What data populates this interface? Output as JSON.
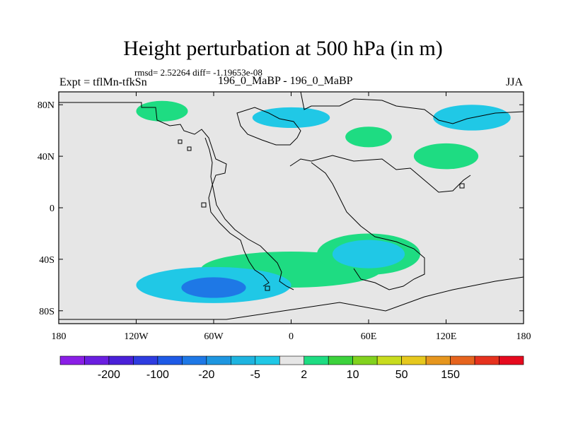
{
  "chart_data": {
    "type": "heatmap",
    "title": "Height perturbation at 500 hPa (in m)",
    "stats_line": "rmsd= 2.52264 diff= -1.19653e-08",
    "left_label": "Expt = tflMn-tfkSn",
    "center_label": "196_0_MaBP - 196_0_MaBP",
    "right_label": "JJA",
    "xlim": [
      -180,
      180
    ],
    "ylim": [
      -90,
      90
    ],
    "x_ticks": [
      {
        "value": -180,
        "label": "180"
      },
      {
        "value": -120,
        "label": "120W"
      },
      {
        "value": -60,
        "label": "60W"
      },
      {
        "value": 0,
        "label": "0"
      },
      {
        "value": 60,
        "label": "60E"
      },
      {
        "value": 120,
        "label": "120E"
      },
      {
        "value": 180,
        "label": "180"
      }
    ],
    "y_ticks": [
      {
        "value": 80,
        "label": "80N"
      },
      {
        "value": 40,
        "label": "40N"
      },
      {
        "value": 0,
        "label": "0"
      },
      {
        "value": -40,
        "label": "40S"
      },
      {
        "value": -80,
        "label": "80S"
      }
    ],
    "colorbar": {
      "colors": [
        "#8a1ee6",
        "#6a1ee0",
        "#4a20d8",
        "#2e3ce0",
        "#1e5ae6",
        "#1e78e6",
        "#1e96e0",
        "#1eb4e0",
        "#20c8e6",
        "#e6e6e6",
        "#1edc82",
        "#3cd23c",
        "#82d21e",
        "#c8dc1e",
        "#e6c81e",
        "#e6961e",
        "#e6641e",
        "#e6321e",
        "#e60a1e"
      ],
      "labels": [
        "-200",
        "-100",
        "-20",
        "-5",
        "2",
        "10",
        "50",
        "150"
      ],
      "label_after_box": [
        1,
        3,
        5,
        7,
        9,
        11,
        13,
        15
      ]
    },
    "fields": [
      {
        "level": "10",
        "lon": 0,
        "lat": -48,
        "rx": 70,
        "ry": 14,
        "color": "#1edc82"
      },
      {
        "level": "-5",
        "lon": -60,
        "lat": -60,
        "rx": 60,
        "ry": 14,
        "color": "#20c8e6"
      },
      {
        "level": "-20",
        "lon": -60,
        "lat": -62,
        "rx": 25,
        "ry": 8,
        "color": "#1e78e6"
      },
      {
        "level": "10",
        "lon": 60,
        "lat": -36,
        "rx": 40,
        "ry": 16,
        "color": "#1edc82"
      },
      {
        "level": "-5",
        "lon": 60,
        "lat": -36,
        "rx": 28,
        "ry": 11,
        "color": "#20c8e6"
      },
      {
        "level": "10",
        "lon": -100,
        "lat": 75,
        "rx": 20,
        "ry": 8,
        "color": "#1edc82"
      },
      {
        "level": "-5",
        "lon": 0,
        "lat": 70,
        "rx": 30,
        "ry": 8,
        "color": "#20c8e6"
      },
      {
        "level": "10",
        "lon": 60,
        "lat": 55,
        "rx": 18,
        "ry": 8,
        "color": "#1edc82"
      },
      {
        "level": "-5",
        "lon": 140,
        "lat": 70,
        "rx": 30,
        "ry": 10,
        "color": "#20c8e6"
      },
      {
        "level": "10",
        "lon": 120,
        "lat": 40,
        "rx": 25,
        "ry": 10,
        "color": "#1edc82"
      }
    ]
  }
}
